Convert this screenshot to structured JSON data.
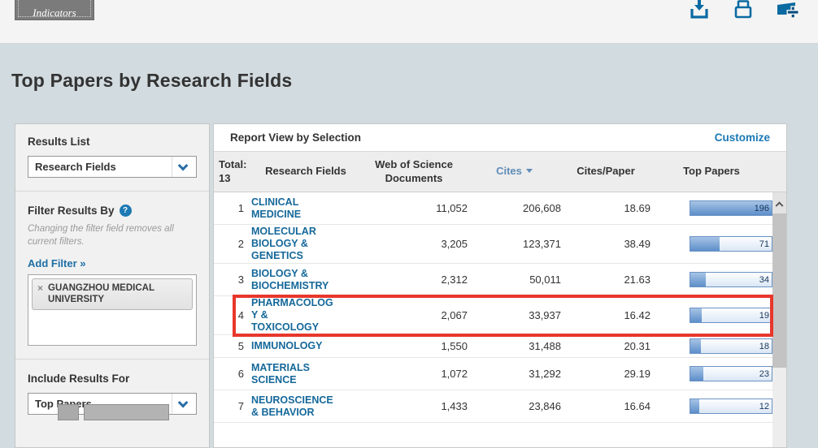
{
  "toolbar": {
    "indicators_label": "Indicators",
    "icons": [
      {
        "name": "download-icon"
      },
      {
        "name": "print-icon"
      },
      {
        "name": "add-to-report-icon"
      }
    ],
    "icon_color": "#0b6aa2"
  },
  "page": {
    "title": "Top Papers by Research Fields"
  },
  "sidebar": {
    "results_list_label": "Results List",
    "results_list_value": "Research Fields",
    "filter_heading": "Filter Results By",
    "help_badge": "?",
    "filter_note": "Changing the filter field removes all current filters.",
    "add_filter_label": "Add Filter »",
    "filter_tag_remove": "×",
    "filter_tag": "GUANGZHOU MEDICAL UNIVERSITY",
    "include_heading": "Include Results For",
    "include_value": "Top Papers"
  },
  "report": {
    "title": "Report View by Selection",
    "customize_label": "Customize",
    "total_label": "Total:\n13",
    "columns": {
      "research_fields": "Research Fields",
      "wos_documents": "Web of Science\nDocuments",
      "cites": "Cites",
      "cites_per_paper": "Cites/Paper",
      "top_papers": "Top Papers"
    },
    "sorted_by": "Cites",
    "accent_red": "#e8372c",
    "bar_fill_color": "#5d8ec9",
    "rows": [
      {
        "rank": "1",
        "field": "CLINICAL\nMEDICINE",
        "docs": "11,052",
        "cites": "206,608",
        "cites_per_paper": "18.69",
        "top_papers": "196",
        "bar_pct": 100,
        "highlighted": false
      },
      {
        "rank": "2",
        "field": "MOLECULAR\nBIOLOGY &\nGENETICS",
        "docs": "3,205",
        "cites": "123,371",
        "cites_per_paper": "38.49",
        "top_papers": "71",
        "bar_pct": 36,
        "highlighted": false
      },
      {
        "rank": "3",
        "field": "BIOLOGY &\nBIOCHEMISTRY",
        "docs": "2,312",
        "cites": "50,011",
        "cites_per_paper": "21.63",
        "top_papers": "34",
        "bar_pct": 19,
        "highlighted": false
      },
      {
        "rank": "4",
        "field": "PHARMACOLOG\nY &\nTOXICOLOGY",
        "docs": "2,067",
        "cites": "33,937",
        "cites_per_paper": "16.42",
        "top_papers": "19",
        "bar_pct": 14,
        "highlighted": true
      },
      {
        "rank": "5",
        "field": "IMMUNOLOGY",
        "docs": "1,550",
        "cites": "31,488",
        "cites_per_paper": "20.31",
        "top_papers": "18",
        "bar_pct": 13,
        "highlighted": false
      },
      {
        "rank": "6",
        "field": "MATERIALS\nSCIENCE",
        "docs": "1,072",
        "cites": "31,292",
        "cites_per_paper": "29.19",
        "top_papers": "23",
        "bar_pct": 16,
        "highlighted": false
      },
      {
        "rank": "7",
        "field": "NEUROSCIENCE\n& BEHAVIOR",
        "docs": "1,433",
        "cites": "23,846",
        "cites_per_paper": "16.64",
        "top_papers": "12",
        "bar_pct": 11,
        "highlighted": false
      }
    ]
  }
}
